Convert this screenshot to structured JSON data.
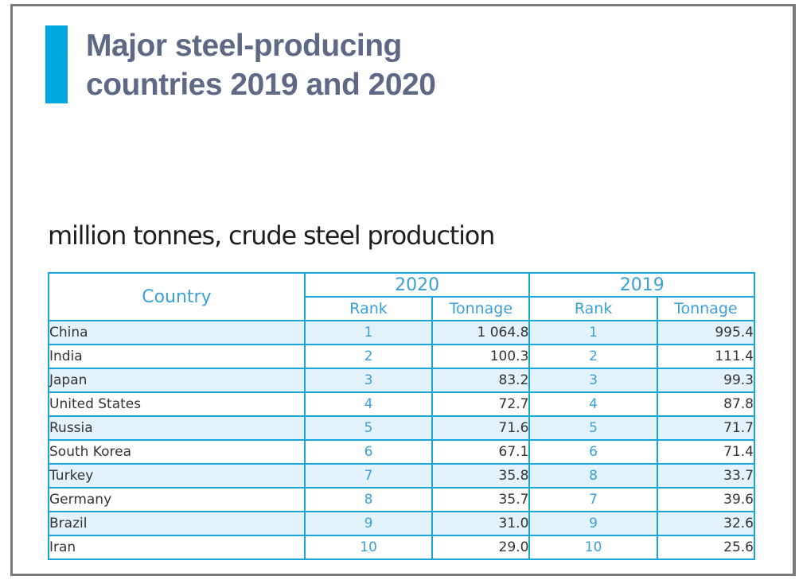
{
  "title_lines": [
    "Major steel-producing",
    "countries 2019 and 2020"
  ],
  "subtitle": "million tonnes, crude steel production",
  "colors": {
    "accent": "#00a7e1",
    "title": "#5e6a85",
    "table_border": "#1ba6da",
    "header_text": "#3aa0d8",
    "row_stripe": "#e4f2fb"
  },
  "table": {
    "country_header": "Country",
    "years": [
      {
        "label": "2020",
        "rank_header": "Rank",
        "tonnage_header": "Tonnage"
      },
      {
        "label": "2019",
        "rank_header": "Rank",
        "tonnage_header": "Tonnage"
      }
    ],
    "rows": [
      {
        "country": "China",
        "rank_2020": "1",
        "ton_2020": "1 064.8",
        "rank_2019": "1",
        "ton_2019": "995.4"
      },
      {
        "country": "India",
        "rank_2020": "2",
        "ton_2020": "100.3",
        "rank_2019": "2",
        "ton_2019": "111.4"
      },
      {
        "country": "Japan",
        "rank_2020": "3",
        "ton_2020": "83.2",
        "rank_2019": "3",
        "ton_2019": "99.3"
      },
      {
        "country": "United States",
        "rank_2020": "4",
        "ton_2020": "72.7",
        "rank_2019": "4",
        "ton_2019": "87.8"
      },
      {
        "country": "Russia",
        "rank_2020": "5",
        "ton_2020": "71.6",
        "rank_2019": "5",
        "ton_2019": "71.7"
      },
      {
        "country": "South Korea",
        "rank_2020": "6",
        "ton_2020": "67.1",
        "rank_2019": "6",
        "ton_2019": "71.4"
      },
      {
        "country": "Turkey",
        "rank_2020": "7",
        "ton_2020": "35.8",
        "rank_2019": "8",
        "ton_2019": "33.7"
      },
      {
        "country": "Germany",
        "rank_2020": "8",
        "ton_2020": "35.7",
        "rank_2019": "7",
        "ton_2019": "39.6"
      },
      {
        "country": "Brazil",
        "rank_2020": "9",
        "ton_2020": "31.0",
        "rank_2019": "9",
        "ton_2019": "32.6"
      },
      {
        "country": "Iran",
        "rank_2020": "10",
        "ton_2020": "29.0",
        "rank_2019": "10",
        "ton_2019": "25.6"
      }
    ]
  }
}
